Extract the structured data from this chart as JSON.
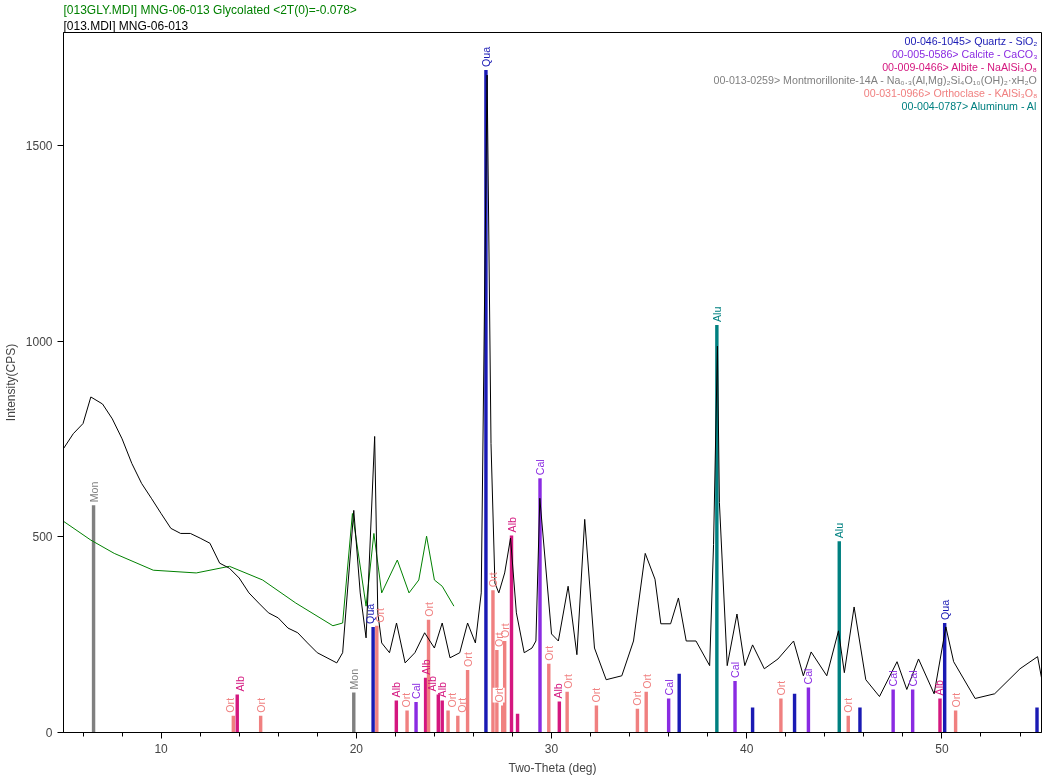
{
  "chart_data": {
    "type": "line",
    "xlabel": "Two-Theta (deg)",
    "ylabel": "Intensity(CPS)",
    "xlim": [
      5,
      55.1
    ],
    "ylim": [
      0,
      1790
    ],
    "xticks": [
      {
        "value": 6,
        "label": null
      },
      {
        "value": 8,
        "label": null
      },
      10,
      {
        "value": 12,
        "label": null
      },
      {
        "value": 14,
        "label": null
      },
      {
        "value": 16,
        "label": null
      },
      {
        "value": 18,
        "label": null
      },
      20,
      {
        "value": 22,
        "label": null
      },
      {
        "value": 24,
        "label": null
      },
      {
        "value": 26,
        "label": null
      },
      {
        "value": 28,
        "label": null
      },
      30,
      {
        "value": 32,
        "label": null
      },
      {
        "value": 34,
        "label": null
      },
      {
        "value": 36,
        "label": null
      },
      {
        "value": 38,
        "label": null
      },
      40,
      {
        "value": 42,
        "label": null
      },
      {
        "value": 44,
        "label": null
      },
      {
        "value": 46,
        "label": null
      },
      {
        "value": 48,
        "label": null
      },
      50,
      {
        "value": 52,
        "label": null
      },
      {
        "value": 54,
        "label": null
      }
    ],
    "yticks": [
      0,
      500,
      1000,
      1500
    ],
    "grid": false,
    "legend": "top right",
    "series": [
      {
        "name": "[013GLY.MDI] MNG-06-013 Glycolated <2T(0)=-0.078>",
        "color": "#008000",
        "x": [
          5.0,
          6.4,
          7.6,
          9.6,
          11.8,
          13.5,
          15.2,
          16.9,
          18.8,
          19.3,
          19.8,
          20.5,
          20.9,
          21.3,
          22.1,
          22.7,
          23.2,
          23.6,
          24.0,
          24.4,
          25.0
        ],
        "values": [
          540,
          492,
          458,
          415,
          408,
          425,
          390,
          331,
          273,
          280,
          560,
          323,
          509,
          357,
          441,
          357,
          390,
          502,
          390,
          374,
          323
        ]
      },
      {
        "name": "[013.MDI] MNG-06-013",
        "color": "#000000",
        "x": [
          5.0,
          5.5,
          6.0,
          6.4,
          7.0,
          7.5,
          8.0,
          8.5,
          9.0,
          9.5,
          10.0,
          10.5,
          11.0,
          11.5,
          12.0,
          12.5,
          13.0,
          13.5,
          14.0,
          14.5,
          15.0,
          15.5,
          16.0,
          16.5,
          17.0,
          17.5,
          18.0,
          18.5,
          19.0,
          19.3,
          19.87,
          20.2,
          20.5,
          20.94,
          21.1,
          21.3,
          21.7,
          22.06,
          22.5,
          23.0,
          23.5,
          24.0,
          24.4,
          24.8,
          25.3,
          25.7,
          26.1,
          26.4,
          26.7,
          26.9,
          27.1,
          27.3,
          27.6,
          27.9,
          28.2,
          28.6,
          29.0,
          29.2,
          29.4,
          30.0,
          30.35,
          30.85,
          31.3,
          31.7,
          32.2,
          32.8,
          33.6,
          34.2,
          34.8,
          35.3,
          35.6,
          36.1,
          36.5,
          36.9,
          37.4,
          38.1,
          38.3,
          38.5,
          38.6,
          39.0,
          39.5,
          39.9,
          40.3,
          40.9,
          41.6,
          42.4,
          42.9,
          43.3,
          44.1,
          44.7,
          45.0,
          45.5,
          46.1,
          46.8,
          47.7,
          48.2,
          48.8,
          49.6,
          50.2,
          50.6,
          51.7,
          52.7,
          54.0,
          54.9,
          55.1
        ],
        "values": [
          726,
          764,
          790,
          858,
          840,
          802,
          751,
          688,
          637,
          599,
          560,
          522,
          509,
          509,
          497,
          484,
          433,
          420,
          395,
          357,
          331,
          306,
          293,
          267,
          255,
          229,
          204,
          191,
          178,
          204,
          568,
          357,
          242,
          757,
          306,
          229,
          204,
          280,
          178,
          204,
          255,
          216,
          280,
          191,
          204,
          280,
          229,
          357,
          1681,
          739,
          382,
          357,
          408,
          497,
          306,
          204,
          216,
          234,
          599,
          252,
          234,
          374,
          199,
          545,
          216,
          135,
          145,
          234,
          458,
          392,
          278,
          278,
          344,
          234,
          234,
          171,
          481,
          988,
          588,
          171,
          303,
          171,
          224,
          163,
          188,
          234,
          145,
          206,
          145,
          260,
          153,
          321,
          135,
          92,
          181,
          110,
          188,
          99,
          270,
          181,
          87,
          99,
          163,
          194,
          140
        ]
      },
      {
        "name": "00-046-1045> Quartz - SiO₂",
        "type": "bar",
        "color": "#1a1ab4",
        "x": [
          20.86,
          26.64,
          36.54,
          40.3,
          42.45,
          45.8,
          50.14,
          54.87
        ],
        "values": [
          270,
          1694,
          150,
          64,
          99,
          64,
          280,
          64
        ],
        "value_labels": [
          "Qua",
          "Qua",
          null,
          null,
          null,
          null,
          "Qua",
          null
        ]
      },
      {
        "name": "00-005-0586> Calcite - CaCO₃",
        "type": "bar",
        "color": "#8a2be2",
        "x": [
          23.06,
          29.41,
          36.0,
          39.4,
          43.16,
          47.5,
          48.5
        ],
        "values": [
          78,
          650,
          87,
          132,
          115,
          110,
          110
        ],
        "value_labels": [
          "Cal",
          "Cal",
          "Cal",
          "Cal",
          "Cal",
          "Cal",
          "Cal"
        ]
      },
      {
        "name": "00-009-0466> Albite - NaAlSi₃O₈",
        "type": "bar",
        "color": "#d4177f",
        "x": [
          13.9,
          22.05,
          23.55,
          24.2,
          24.4,
          27.95,
          28.26,
          30.4,
          49.9
        ],
        "values": [
          97,
          82,
          140,
          97,
          82,
          504,
          48,
          79,
          87
        ],
        "value_labels": [
          "Alb",
          "Alb",
          "Alb",
          "Alb",
          "Alb",
          "Alb",
          null,
          "Alb",
          "Alb"
        ]
      },
      {
        "name": "00-013-0259> Montmorillonite-14A - Na₀.₃(Al,Mg)₂Si₄O₁₀(OH)₂·xH₂O",
        "type": "bar",
        "color": "#808080",
        "x": [
          6.54,
          19.87
        ],
        "values": [
          581,
          102
        ],
        "value_labels": [
          "Mon",
          "Mon"
        ]
      },
      {
        "name": "00-031-0966> Orthoclase - KAlSi₃O₈",
        "type": "bar",
        "color": "#f08080",
        "x": [
          13.7,
          15.1,
          21.05,
          22.6,
          23.7,
          24.7,
          25.2,
          25.7,
          27.0,
          27.2,
          27.5,
          27.6,
          29.86,
          30.8,
          32.3,
          34.4,
          34.85,
          41.75,
          45.2,
          50.7
        ],
        "values": [
          43,
          43,
          273,
          56,
          288,
          56,
          43,
          160,
          364,
          211,
          69,
          234,
          176,
          104,
          69,
          61,
          104,
          87,
          43,
          56
        ],
        "value_labels": [
          "Ort",
          "Ort",
          "Ort",
          "Ort",
          "Ort",
          "Ort",
          "Ort",
          "Ort",
          "Ort",
          "Ort",
          "Ort",
          "Ort",
          "Ort",
          "Ort",
          "Ort",
          "Ort",
          "Ort",
          "Ort",
          "Ort",
          "Ort"
        ]
      },
      {
        "name": "00-004-0787> Aluminum - Al",
        "type": "bar",
        "color": "#008080",
        "x": [
          38.47,
          44.74
        ],
        "values": [
          1042,
          489
        ],
        "value_labels": [
          "Alu",
          "Alu"
        ]
      }
    ]
  }
}
